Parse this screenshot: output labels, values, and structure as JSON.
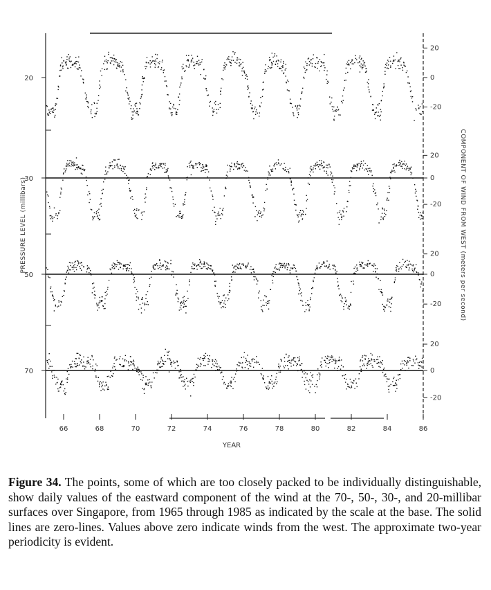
{
  "chart_data": {
    "type": "scatter",
    "xlabel": "YEAR",
    "ylabel_left": "PRESSURE LEVEL (millibars)",
    "ylabel_right": "COMPONENT OF WIND FROM WEST (meters per second)",
    "x_tick_labels": [
      "66",
      "68",
      "70",
      "72",
      "74",
      "76",
      "78",
      "80",
      "82",
      "84",
      "86"
    ],
    "x_range": [
      1965,
      1986
    ],
    "panels": [
      {
        "pressure_level": "20",
        "right_ticks": [
          "20",
          "0",
          "-20"
        ],
        "zero_line": false,
        "phases": [
          1965.8,
          1968.1,
          1970.5,
          1972.6,
          1974.9,
          1977.2,
          1979.4,
          1981.7,
          1983.9
        ],
        "amplitude_east": 25,
        "amplitude_west": 12,
        "noise": 4
      },
      {
        "pressure_level": "30",
        "right_ticks": [
          "20",
          "0",
          "-20"
        ],
        "zero_line": true,
        "phases": [
          1966.0,
          1968.3,
          1970.7,
          1972.9,
          1975.1,
          1977.4,
          1979.7,
          1982.0,
          1984.2
        ],
        "amplitude_east": 30,
        "amplitude_west": 12,
        "noise": 4
      },
      {
        "pressure_level": "50",
        "right_ticks": [
          "20",
          "0",
          "-20"
        ],
        "zero_line": true,
        "phases": [
          1966.2,
          1968.6,
          1970.9,
          1973.1,
          1975.4,
          1977.7,
          1980.0,
          1982.2,
          1984.5
        ],
        "amplitude_east": 22,
        "amplitude_west": 10,
        "noise": 4
      },
      {
        "pressure_level": "70",
        "right_ticks": [
          "20",
          "0",
          "-20"
        ],
        "zero_line": true,
        "phases": [
          1966.4,
          1968.8,
          1971.2,
          1973.4,
          1975.7,
          1978.0,
          1980.3,
          1982.5,
          1984.8
        ],
        "amplitude_east": 12,
        "amplitude_west": 8,
        "noise": 5
      }
    ]
  },
  "caption": {
    "label": "Figure 34.",
    "text": " The points, some of which are too closely packed to be individually distinguishable, show daily values of the eastward component of the wind at the 70-, 50-, 30-, and 20-millibar surfaces over Singapore, from 1965 through 1985 as indicated by the scale at the base. The solid lines are zero-lines. Values above zero indicate winds from the west. The approximate two-year periodicity is evident."
  }
}
